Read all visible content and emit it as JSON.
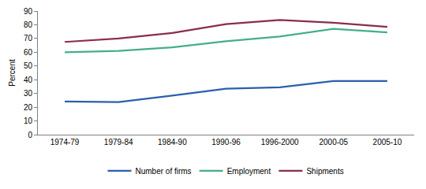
{
  "chart_data": {
    "type": "line",
    "y_label": "Percent",
    "categories": [
      "1974-79",
      "1979-84",
      "1984-90",
      "1990-96",
      "1996-2000",
      "2000-05",
      "2005-10"
    ],
    "series": [
      {
        "name": "Number of firms",
        "color": "#2b5fae",
        "values": [
          24.2,
          23.7,
          28.5,
          33.5,
          34.5,
          39,
          39
        ]
      },
      {
        "name": "Employment",
        "color": "#45ae8a",
        "values": [
          60,
          61,
          63.5,
          68,
          71.5,
          77,
          74.5
        ]
      },
      {
        "name": "Shipments",
        "color": "#8c2d4a",
        "values": [
          67.5,
          70,
          74,
          80.5,
          83.5,
          81.5,
          78.5
        ]
      }
    ],
    "ylim": [
      0,
      90
    ],
    "yticks": [
      0,
      10,
      20,
      30,
      40,
      50,
      60,
      70,
      80,
      90
    ],
    "grid": false,
    "legend": "bottom"
  }
}
